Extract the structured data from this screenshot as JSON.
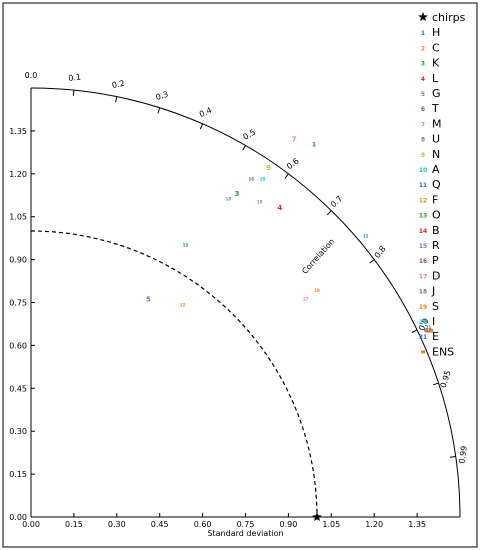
{
  "chart_data": {
    "type": "scatter",
    "subtype": "taylor-diagram",
    "reference": {
      "name": "chirps",
      "std": 1.0
    },
    "xlabel": "Standard deviation",
    "corr_label": "Correlation",
    "std_ticks": [
      "0.00",
      "0.15",
      "0.30",
      "0.45",
      "0.60",
      "0.75",
      "0.90",
      "1.05",
      "1.20",
      "1.35"
    ],
    "std_tick_values": [
      0.0,
      0.15,
      0.3,
      0.45,
      0.6,
      0.75,
      0.9,
      1.05,
      1.2,
      1.35
    ],
    "std_range": [
      0,
      1.5
    ],
    "corr_ticks": [
      "0.0",
      "0.1",
      "0.2",
      "0.3",
      "0.4",
      "0.5",
      "0.6",
      "0.7",
      "0.8",
      "0.9",
      "0.95",
      "0.99"
    ],
    "corr_tick_values": [
      0.0,
      0.1,
      0.2,
      0.3,
      0.4,
      0.5,
      0.6,
      0.7,
      0.8,
      0.9,
      0.95,
      0.99
    ],
    "legend_position": "right",
    "series": [
      {
        "name": "H",
        "label": "1",
        "color": "#1f77b4",
        "x": 0.99,
        "y": 1.3,
        "fs": 6
      },
      {
        "name": "C",
        "label": "2",
        "color": "#ff7f0e",
        "x": 1.39,
        "y": 0.65,
        "fs": 5
      },
      {
        "name": "K",
        "label": "3",
        "color": "#2ca02c",
        "x": 0.72,
        "y": 1.13,
        "fs": 7
      },
      {
        "name": "L",
        "label": "4",
        "color": "#d62728",
        "x": 0.87,
        "y": 1.08,
        "fs": 7
      },
      {
        "name": "G",
        "label": "5",
        "color": "#9467bd",
        "x": 0.41,
        "y": 0.76,
        "fs": 7
      },
      {
        "name": "T",
        "label": "6",
        "color": "#8c564b",
        "x": 1.38,
        "y": 0.65,
        "fs": 5
      },
      {
        "name": "M",
        "label": "7",
        "color": "#e377c2",
        "x": 0.92,
        "y": 1.32,
        "fs": 7
      },
      {
        "name": "U",
        "label": "8",
        "color": "#7f7f7f",
        "x": 1.4,
        "y": 0.65,
        "fs": 5
      },
      {
        "name": "N",
        "label": "9",
        "color": "#bcbd22",
        "x": 0.83,
        "y": 1.22,
        "fs": 7
      },
      {
        "name": "A",
        "label": "10",
        "color": "#17becf",
        "x": 1.39,
        "y": 0.65,
        "fs": 4
      },
      {
        "name": "Q",
        "label": "11",
        "color": "#1f77b4",
        "x": 1.17,
        "y": 0.98,
        "fs": 4
      },
      {
        "name": "F",
        "label": "12",
        "color": "#ff7f0e",
        "x": 0.53,
        "y": 0.74,
        "fs": 4
      },
      {
        "name": "O",
        "label": "13",
        "color": "#2ca02c",
        "x": 0.54,
        "y": 0.95,
        "fs": 4
      },
      {
        "name": "B",
        "label": "14",
        "color": "#d62728",
        "x": 1.39,
        "y": 0.65,
        "fs": 4
      },
      {
        "name": "R",
        "label": "15",
        "color": "#9467bd",
        "x": 0.8,
        "y": 1.1,
        "fs": 4
      },
      {
        "name": "P",
        "label": "16",
        "color": "#8c564b",
        "x": 0.77,
        "y": 1.18,
        "fs": 4
      },
      {
        "name": "D",
        "label": "17",
        "color": "#e377c2",
        "x": 0.96,
        "y": 0.76,
        "fs": 4
      },
      {
        "name": "J",
        "label": "18",
        "color": "#7f7f7f",
        "x": 0.69,
        "y": 1.11,
        "fs": 4
      },
      {
        "name": "S",
        "label": "19",
        "color": "#ff7f0e",
        "x": 1.0,
        "y": 0.79,
        "fs": 4
      },
      {
        "name": "I",
        "label": "20",
        "color": "#17becf",
        "x": 0.81,
        "y": 1.18,
        "fs": 4
      },
      {
        "name": "E",
        "label": "21",
        "color": "#1f77b4",
        "x": 1.39,
        "y": 0.66,
        "fs": 4
      },
      {
        "name": "ENS",
        "label": "",
        "color": "#ff7f0e",
        "x": 1.4,
        "y": 0.65,
        "fs": 4
      }
    ]
  }
}
